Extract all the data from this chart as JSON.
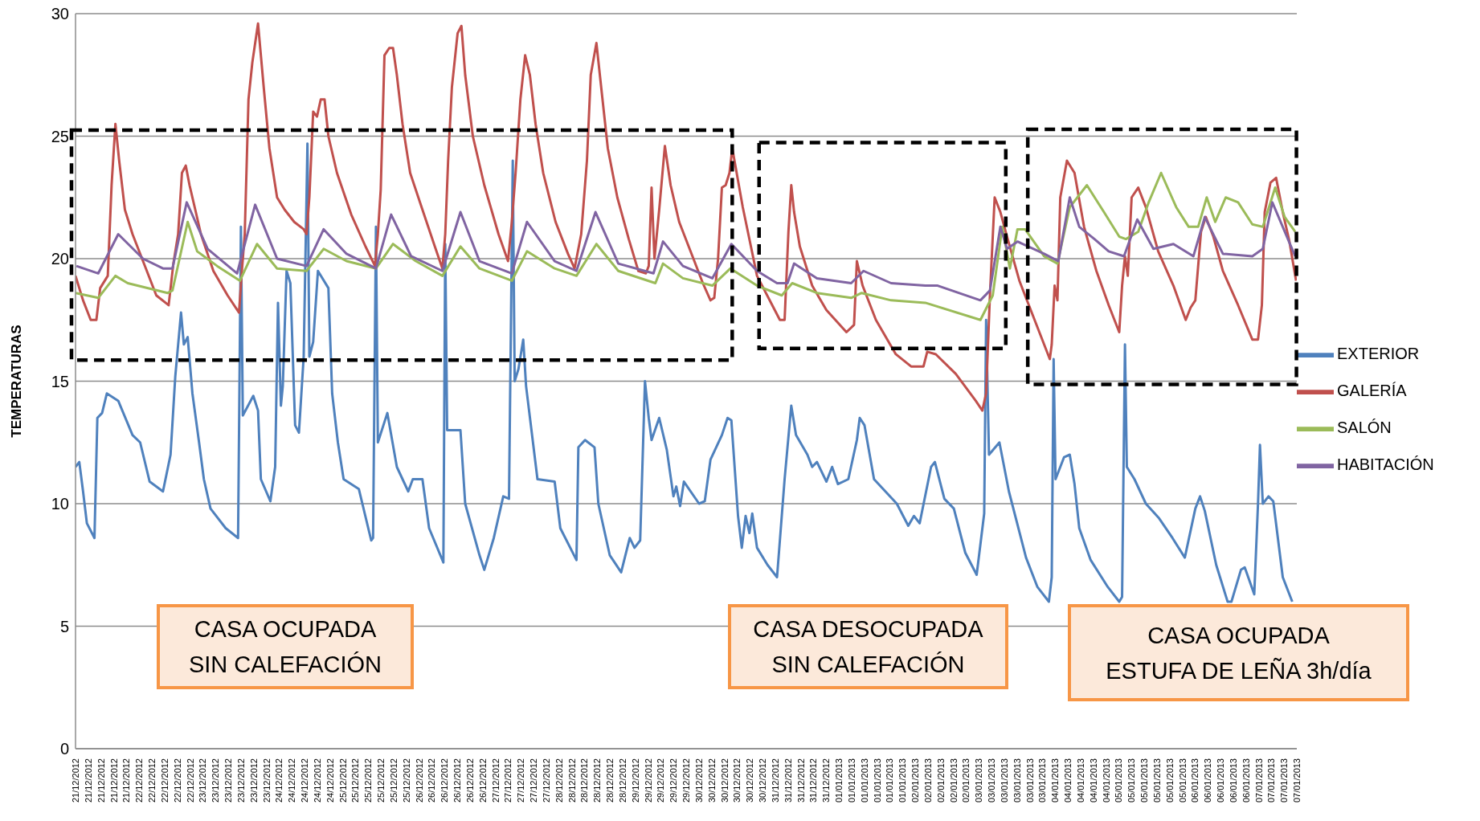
{
  "chart_data": {
    "type": "line",
    "ylabel": "TEMPERATURAS",
    "ylim": [
      0,
      30
    ],
    "yticks": [
      0,
      5,
      10,
      15,
      20,
      25,
      30
    ],
    "grid": "y",
    "legend": "right",
    "xlim": [
      "2012-12-21T05:00",
      "2013-01-07T13:00"
    ],
    "xticks": [
      {
        "value": "2012-12-21T05:00",
        "label": "21/12/2012"
      },
      {
        "value": "2012-12-21T09:20",
        "label": "21/12/2012"
      },
      {
        "value": "2012-12-21T13:40",
        "label": "21/12/2012"
      },
      {
        "value": "2012-12-21T18:00",
        "label": "21/12/2012"
      },
      {
        "value": "2012-12-21T22:20",
        "label": "21/12/2012"
      },
      {
        "value": "2012-12-22T02:40",
        "label": "22/12/2012"
      },
      {
        "value": "2012-12-22T07:00",
        "label": "22/12/2012"
      },
      {
        "value": "2012-12-22T11:20",
        "label": "22/12/2012"
      },
      {
        "value": "2012-12-22T15:40",
        "label": "22/12/2012"
      },
      {
        "value": "2012-12-22T20:00",
        "label": "22/12/2012"
      },
      {
        "value": "2012-12-23T00:20",
        "label": "23/12/2012"
      },
      {
        "value": "2012-12-23T04:40",
        "label": "23/12/2012"
      },
      {
        "value": "2012-12-23T09:00",
        "label": "23/12/2012"
      },
      {
        "value": "2012-12-23T13:20",
        "label": "23/12/2012"
      },
      {
        "value": "2012-12-23T17:40",
        "label": "23/12/2012"
      },
      {
        "value": "2012-12-23T22:00",
        "label": "23/12/2012"
      },
      {
        "value": "2012-12-24T02:20",
        "label": "24/12/2012"
      },
      {
        "value": "2012-12-24T06:40",
        "label": "24/12/2012"
      },
      {
        "value": "2012-12-24T11:00",
        "label": "24/12/2012"
      },
      {
        "value": "2012-12-24T15:20",
        "label": "24/12/2012"
      },
      {
        "value": "2012-12-24T19:40",
        "label": "24/12/2012"
      },
      {
        "value": "2012-12-25T00:00",
        "label": "25/12/2012"
      },
      {
        "value": "2012-12-25T04:20",
        "label": "25/12/2012"
      },
      {
        "value": "2012-12-25T08:40",
        "label": "25/12/2012"
      },
      {
        "value": "2012-12-25T13:00",
        "label": "25/12/2012"
      },
      {
        "value": "2012-12-25T17:20",
        "label": "25/12/2012"
      },
      {
        "value": "2012-12-25T21:40",
        "label": "25/12/2012"
      },
      {
        "value": "2012-12-26T02:00",
        "label": "26/12/2012"
      },
      {
        "value": "2012-12-26T06:20",
        "label": "26/12/2012"
      },
      {
        "value": "2012-12-26T10:40",
        "label": "26/12/2012"
      },
      {
        "value": "2012-12-26T15:00",
        "label": "26/12/2012"
      },
      {
        "value": "2012-12-26T19:20",
        "label": "26/12/2012"
      },
      {
        "value": "2012-12-26T23:40",
        "label": "26/12/2012"
      },
      {
        "value": "2012-12-27T04:00",
        "label": "27/12/2012"
      },
      {
        "value": "2012-12-27T08:20",
        "label": "27/12/2012"
      },
      {
        "value": "2012-12-27T12:40",
        "label": "27/12/2012"
      },
      {
        "value": "2012-12-27T17:00",
        "label": "27/12/2012"
      },
      {
        "value": "2012-12-27T21:20",
        "label": "27/12/2012"
      },
      {
        "value": "2012-12-28T01:40",
        "label": "28/12/2012"
      },
      {
        "value": "2012-12-28T06:00",
        "label": "28/12/2012"
      },
      {
        "value": "2012-12-28T10:20",
        "label": "28/12/2012"
      },
      {
        "value": "2012-12-28T14:40",
        "label": "28/12/2012"
      },
      {
        "value": "2012-12-28T19:00",
        "label": "28/12/2012"
      },
      {
        "value": "2012-12-28T23:20",
        "label": "28/12/2012"
      },
      {
        "value": "2012-12-29T03:40",
        "label": "29/12/2012"
      },
      {
        "value": "2012-12-29T08:00",
        "label": "29/12/2012"
      },
      {
        "value": "2012-12-29T12:20",
        "label": "29/12/2012"
      },
      {
        "value": "2012-12-29T16:40",
        "label": "29/12/2012"
      },
      {
        "value": "2012-12-29T21:00",
        "label": "29/12/2012"
      },
      {
        "value": "2012-12-30T01:20",
        "label": "30/12/2012"
      },
      {
        "value": "2012-12-30T05:40",
        "label": "30/12/2012"
      },
      {
        "value": "2012-12-30T10:00",
        "label": "30/12/2012"
      },
      {
        "value": "2012-12-30T14:20",
        "label": "30/12/2012"
      },
      {
        "value": "2012-12-30T18:40",
        "label": "30/12/2012"
      },
      {
        "value": "2012-12-30T23:00",
        "label": "30/12/2012"
      },
      {
        "value": "2012-12-31T03:20",
        "label": "31/12/2012"
      },
      {
        "value": "2012-12-31T07:40",
        "label": "31/12/2012"
      },
      {
        "value": "2012-12-31T12:00",
        "label": "31/12/2012"
      },
      {
        "value": "2012-12-31T16:20",
        "label": "31/12/2012"
      },
      {
        "value": "2012-12-31T20:40",
        "label": "31/12/2012"
      },
      {
        "value": "2013-01-01T01:00",
        "label": "01/01/2013"
      },
      {
        "value": "2013-01-01T05:20",
        "label": "01/01/2013"
      },
      {
        "value": "2013-01-01T09:40",
        "label": "01/01/2013"
      },
      {
        "value": "2013-01-01T14:00",
        "label": "01/01/2013"
      },
      {
        "value": "2013-01-01T18:20",
        "label": "01/01/2013"
      },
      {
        "value": "2013-01-01T22:40",
        "label": "01/01/2013"
      },
      {
        "value": "2013-01-02T03:00",
        "label": "02/01/2013"
      },
      {
        "value": "2013-01-02T07:20",
        "label": "02/01/2013"
      },
      {
        "value": "2013-01-02T11:40",
        "label": "02/01/2013"
      },
      {
        "value": "2013-01-02T16:00",
        "label": "02/01/2013"
      },
      {
        "value": "2013-01-02T20:20",
        "label": "02/01/2013"
      },
      {
        "value": "2013-01-03T00:40",
        "label": "03/01/2013"
      },
      {
        "value": "2013-01-03T05:00",
        "label": "03/01/2013"
      },
      {
        "value": "2013-01-03T09:20",
        "label": "03/01/2013"
      },
      {
        "value": "2013-01-03T13:40",
        "label": "03/01/2013"
      },
      {
        "value": "2013-01-03T18:00",
        "label": "03/01/2013"
      },
      {
        "value": "2013-01-03T22:20",
        "label": "03/01/2013"
      },
      {
        "value": "2013-01-04T02:40",
        "label": "04/01/2013"
      },
      {
        "value": "2013-01-04T07:00",
        "label": "04/01/2013"
      },
      {
        "value": "2013-01-04T11:20",
        "label": "04/01/2013"
      },
      {
        "value": "2013-01-04T15:40",
        "label": "04/01/2013"
      },
      {
        "value": "2013-01-04T20:00",
        "label": "04/01/2013"
      },
      {
        "value": "2013-01-05T00:20",
        "label": "05/01/2013"
      },
      {
        "value": "2013-01-05T04:40",
        "label": "05/01/2013"
      },
      {
        "value": "2013-01-05T09:00",
        "label": "05/01/2013"
      },
      {
        "value": "2013-01-05T13:20",
        "label": "05/01/2013"
      },
      {
        "value": "2013-01-05T17:40",
        "label": "05/01/2013"
      },
      {
        "value": "2013-01-05T22:00",
        "label": "05/01/2013"
      },
      {
        "value": "2013-01-06T02:20",
        "label": "06/01/2013"
      },
      {
        "value": "2013-01-06T06:40",
        "label": "06/01/2013"
      },
      {
        "value": "2013-01-06T11:00",
        "label": "06/01/2013"
      },
      {
        "value": "2013-01-06T15:20",
        "label": "06/01/2013"
      },
      {
        "value": "2013-01-06T19:40",
        "label": "06/01/2013"
      },
      {
        "value": "2013-01-07T00:00",
        "label": "07/01/2013"
      },
      {
        "value": "2013-01-07T04:20",
        "label": "07/01/2013"
      },
      {
        "value": "2013-01-07T08:40",
        "label": "07/01/2013"
      },
      {
        "value": "2013-01-07T13:00",
        "label": "07/01/2013"
      }
    ],
    "annotations": [
      "CASA OCUPADA\nSIN CALEFACIÓN",
      "CASA DESOCUPADA\nSIN CALEFACIÓN",
      "CASA OCUPADA\nESTUFA DE LEÑA 3h/día"
    ],
    "series": [
      {
        "name": "EXTERIOR",
        "color": "#4f81bd",
        "x": [
          "2012-12-21T05:00",
          "2012-12-21T06:17",
          "2012-12-21T07:34",
          "2012-12-21T08:52",
          "2012-12-21T11:27",
          "2012-12-21T12:26",
          "2012-12-21T14:03",
          "2012-12-21T15:40",
          "2012-12-21T19:33",
          "2012-12-22T00:25",
          "2012-12-22T03:01",
          "2012-12-22T06:15",
          "2012-12-22T10:47",
          "2012-12-22T13:22",
          "2012-12-22T14:59",
          "2012-12-22T16:56",
          "2012-12-22T17:54",
          "2012-12-22T19:12",
          "2012-12-22T20:49",
          "2012-12-22T23:05",
          "2012-12-23T00:43",
          "2012-12-23T02:59",
          "2012-12-23T08:09",
          "2012-12-23T12:22",
          "2012-12-23T13:20",
          "2012-12-23T13:59",
          "2012-12-23T17:33",
          "2012-12-23T19:10",
          "2012-12-23T20:08",
          "2012-12-23T23:22",
          "2012-12-24T01:00",
          "2012-12-24T01:58",
          "2012-12-24T02:57",
          "2012-12-24T03:36",
          "2012-12-24T04:53",
          "2012-12-24T06:11",
          "2012-12-24T07:48",
          "2012-12-24T09:06",
          "2012-12-24T10:43",
          "2012-12-24T12:00",
          "2012-12-24T12:39",
          "2012-12-24T13:57",
          "2012-12-24T15:34",
          "2012-12-24T19:08",
          "2012-12-24T20:25",
          "2012-12-24T22:22",
          "2012-12-25T00:19",
          "2012-12-25T05:30",
          "2012-12-25T09:43",
          "2012-12-25T10:21",
          "2012-12-25T11:20",
          "2012-12-25T11:59",
          "2012-12-25T15:13",
          "2012-12-25T18:27",
          "2012-12-25T22:20",
          "2012-12-25T23:53",
          "2012-12-26T03:10",
          "2012-12-26T05:26",
          "2012-12-26T10:18",
          "2012-12-26T10:56",
          "2012-12-26T11:35",
          "2012-12-26T16:07",
          "2012-12-26T17:44",
          "2012-12-26T22:36",
          "2012-12-27T00:14",
          "2012-12-27T03:28",
          "2012-12-27T06:42",
          "2012-12-27T08:39",
          "2012-12-27T09:56",
          "2012-12-27T10:35",
          "2012-12-27T11:53",
          "2012-12-27T13:30",
          "2012-12-27T14:28",
          "2012-12-27T18:21",
          "2012-12-28T00:12",
          "2012-12-28T02:08",
          "2012-12-28T07:38",
          "2012-12-28T08:17",
          "2012-12-28T10:33",
          "2012-12-28T13:47",
          "2012-12-28T15:05",
          "2012-12-28T18:58",
          "2012-12-28T22:51",
          "2012-12-29T01:47",
          "2012-12-29T03:24",
          "2012-12-29T05:20",
          "2012-12-29T06:58",
          "2012-12-29T08:15",
          "2012-12-29T09:13",
          "2012-12-29T11:49",
          "2012-12-29T14:24",
          "2012-12-29T16:40",
          "2012-12-29T17:38",
          "2012-12-29T18:56",
          "2012-12-29T20:14",
          "2012-12-30T01:24",
          "2012-12-30T03:20",
          "2012-12-30T05:17",
          "2012-12-30T09:10",
          "2012-12-30T11:06",
          "2012-12-30T12:24",
          "2012-12-30T14:40",
          "2012-12-30T15:57",
          "2012-12-30T17:15",
          "2012-12-30T18:33",
          "2012-12-30T19:31",
          "2012-12-30T21:08",
          "2012-12-31T00:43",
          "2012-12-31T03:57",
          "2012-12-31T06:32",
          "2012-12-31T08:48",
          "2012-12-31T10:25",
          "2012-12-31T14:18",
          "2012-12-31T15:55",
          "2012-12-31T17:33",
          "2012-12-31T20:47",
          "2012-12-31T22:43",
          "2013-01-01T00:41",
          "2013-01-01T04:14",
          "2013-01-01T07:09",
          "2013-01-01T08:07",
          "2013-01-01T09:45",
          "2013-01-01T12:59",
          "2013-01-01T20:45",
          "2013-01-02T00:39",
          "2013-01-02T02:35",
          "2013-01-02T04:32",
          "2013-01-02T08:25",
          "2013-01-02T09:43",
          "2013-01-02T12:57",
          "2013-01-02T16:11",
          "2013-01-02T20:04",
          "2013-01-02T23:57",
          "2013-01-03T02:31",
          "2013-01-03T03:10",
          "2013-01-03T04:09",
          "2013-01-03T07:42",
          "2013-01-03T10:56",
          "2013-01-03T16:46",
          "2013-01-03T20:39",
          "2013-01-04T00:33",
          "2013-01-04T01:31",
          "2013-01-04T02:10",
          "2013-01-04T02:49",
          "2013-01-04T05:44",
          "2013-01-04T07:40",
          "2013-01-04T09:17",
          "2013-01-04T10:54",
          "2013-01-04T14:47",
          "2013-01-04T20:37",
          "2013-01-05T00:31",
          "2013-01-05T01:29",
          "2013-01-05T02:28",
          "2013-01-05T03:06",
          "2013-01-05T05:42",
          "2013-01-05T09:35",
          "2013-01-05T14:07",
          "2013-01-05T18:39",
          "2013-01-05T22:51",
          "2013-01-06T02:26",
          "2013-01-06T04:03",
          "2013-01-06T05:40",
          "2013-01-06T09:33",
          "2013-01-06T13:26",
          "2013-01-06T14:44",
          "2013-01-06T17:58",
          "2013-01-06T19:16",
          "2013-01-06T22:30",
          "2013-01-06T23:47",
          "2013-01-07T00:27",
          "2013-01-07T01:25",
          "2013-01-07T03:22",
          "2013-01-07T04:59",
          "2013-01-07T08:13",
          "2013-01-07T11:27"
        ],
        "values": [
          11.5,
          11.7,
          10.5,
          9.2,
          8.6,
          13.5,
          13.7,
          14.5,
          14.2,
          12.8,
          12.5,
          10.9,
          10.5,
          12.0,
          15.2,
          17.8,
          16.5,
          16.8,
          14.5,
          12.5,
          11.0,
          9.8,
          9.0,
          8.6,
          21.3,
          13.6,
          14.4,
          13.8,
          11.0,
          10.1,
          11.5,
          18.2,
          14.0,
          14.8,
          19.5,
          19.0,
          13.2,
          12.9,
          16.0,
          24.7,
          16.0,
          16.6,
          19.5,
          18.8,
          14.5,
          12.5,
          11.0,
          10.6,
          8.5,
          8.6,
          21.3,
          12.5,
          13.7,
          11.5,
          10.5,
          11.0,
          11.0,
          9.0,
          7.6,
          20.6,
          13.0,
          13.0,
          10.0,
          7.9,
          7.3,
          8.6,
          10.3,
          10.2,
          24.0,
          15.0,
          15.5,
          16.7,
          14.8,
          11.0,
          10.9,
          9.0,
          7.7,
          12.3,
          12.6,
          12.3,
          10.0,
          7.9,
          7.2,
          8.6,
          8.2,
          8.5,
          15.0,
          13.5,
          12.6,
          13.5,
          12.2,
          10.3,
          10.7,
          9.9,
          10.9,
          10.0,
          10.1,
          11.8,
          12.8,
          13.5,
          13.4,
          9.5,
          8.2,
          9.5,
          8.8,
          9.6,
          8.2,
          7.5,
          7.0,
          11.0,
          14.0,
          12.8,
          12.0,
          11.5,
          11.7,
          10.9,
          11.5,
          10.8,
          11.0,
          12.6,
          13.5,
          13.2,
          11.0,
          10.0,
          9.1,
          9.5,
          9.2,
          11.5,
          11.7,
          10.2,
          9.8,
          8.0,
          7.1,
          9.6,
          17.5,
          12.0,
          12.5,
          10.5,
          7.8,
          6.6,
          6.0,
          7.0,
          15.9,
          11.0,
          11.9,
          12.0,
          10.8,
          9.0,
          7.7,
          6.6,
          6.0,
          6.2,
          16.5,
          11.5,
          11.0,
          10.0,
          9.4,
          8.6,
          7.8,
          9.8,
          10.3,
          9.7,
          7.5,
          6.0,
          6.0,
          7.3,
          7.4,
          6.3,
          10.0,
          12.4,
          10.0,
          10.3,
          10.1,
          7.0,
          6.0
        ]
      },
      {
        "name": "GALERÍA",
        "color": "#c0504d",
        "x": [
          "2012-12-21T05:00",
          "2012-12-21T07:34",
          "2012-12-21T10:10",
          "2012-12-21T12:06",
          "2012-12-21T13:24",
          "2012-12-21T15:59",
          "2012-12-21T17:17",
          "2012-12-21T18:35",
          "2012-12-21T19:52",
          "2012-12-21T21:49",
          "2012-12-22T00:25",
          "2012-12-22T05:17",
          "2012-12-22T08:31",
          "2012-12-22T12:43",
          "2012-12-22T14:20",
          "2012-12-22T15:57",
          "2012-12-22T17:15",
          "2012-12-22T18:33",
          "2012-12-22T19:50",
          "2012-12-22T21:47",
          "2012-12-22T23:43",
          "2012-12-23T03:57",
          "2012-12-23T08:48",
          "2012-12-23T12:41",
          "2012-12-23T13:40",
          "2012-12-23T14:38",
          "2012-12-23T15:55",
          "2012-12-23T17:13",
          "2012-12-23T19:10",
          "2012-12-23T21:06",
          "2012-12-23T23:03",
          "2012-12-24T01:39",
          "2012-12-24T04:14",
          "2012-12-24T07:29",
          "2012-12-24T10:43",
          "2012-12-24T11:41",
          "2012-12-24T12:39",
          "2012-12-24T13:57",
          "2012-12-24T15:15",
          "2012-12-24T16:32",
          "2012-12-24T17:50",
          "2012-12-24T19:08",
          "2012-12-24T22:03",
          "2012-12-25T02:55",
          "2012-12-25T07:46",
          "2012-12-25T11:00",
          "2012-12-25T11:59",
          "2012-12-25T12:57",
          "2012-12-25T14:14",
          "2012-12-25T15:52",
          "2012-12-25T17:09",
          "2012-12-25T18:27",
          "2012-12-25T20:23",
          "2012-12-25T22:59",
          "2012-12-26T03:10",
          "2012-12-26T07:23",
          "2012-12-26T09:58",
          "2012-12-26T10:56",
          "2012-12-26T11:55",
          "2012-12-26T13:12",
          "2012-12-26T15:09",
          "2012-12-26T16:27",
          "2012-12-26T17:44",
          "2012-12-26T20:20",
          "2012-12-27T00:14",
          "2012-12-27T05:05",
          "2012-12-27T08:19",
          "2012-12-27T09:37",
          "2012-12-27T10:54",
          "2012-12-27T12:32",
          "2012-12-27T14:09",
          "2012-12-27T15:46",
          "2012-12-27T17:42",
          "2012-12-27T20:18",
          "2012-12-28T00:31",
          "2012-12-28T04:44",
          "2012-12-28T06:59",
          "2012-12-28T09:15",
          "2012-12-28T11:12",
          "2012-12-28T12:30",
          "2012-12-28T14:26",
          "2012-12-28T16:03",
          "2012-12-28T18:19",
          "2012-12-28T21:33",
          "2012-12-29T01:27",
          "2012-12-29T04:42",
          "2012-12-29T07:17",
          "2012-12-29T08:15",
          "2012-12-29T09:13",
          "2012-12-29T10:12",
          "2012-12-29T11:49",
          "2012-12-29T13:45",
          "2012-12-29T15:42",
          "2012-12-29T18:37",
          "2012-12-29T23:28",
          "2012-12-30T02:41",
          "2012-12-30T05:17",
          "2012-12-30T06:34",
          "2012-12-30T07:52",
          "2012-12-30T09:10",
          "2012-12-30T10:27",
          "2012-12-30T11:45",
          "2012-12-30T12:43",
          "2012-12-30T16:17",
          "2012-12-30T21:08",
          "2012-12-31T02:20",
          "2012-12-31T04:55",
          "2012-12-31T06:32",
          "2012-12-31T07:50",
          "2012-12-31T08:48",
          "2012-12-31T09:46",
          "2012-12-31T11:43",
          "2012-12-31T15:55",
          "2012-12-31T20:47",
          "2013-01-01T03:36",
          "2013-01-01T06:11",
          "2013-01-01T07:09",
          "2013-01-01T09:06",
          "2013-01-01T13:38",
          "2013-01-01T20:25",
          "2013-01-02T01:37",
          "2013-01-02T05:50",
          "2013-01-02T07:07",
          "2013-01-02T10:02",
          "2013-01-02T16:50",
          "2013-01-02T23:38",
          "2013-01-03T01:53",
          "2013-01-03T03:10",
          "2013-01-03T04:28",
          "2013-01-03T06:05",
          "2013-01-03T08:02",
          "2013-01-03T10:18",
          "2013-01-03T14:30",
          "2013-01-03T19:41",
          "2013-01-04T00:52",
          "2013-01-04T01:31",
          "2013-01-04T02:30",
          "2013-01-04T03:28",
          "2013-01-04T04:26",
          "2013-01-04T06:42",
          "2013-01-04T09:17",
          "2013-01-04T12:32",
          "2013-01-04T16:44",
          "2013-01-04T20:56",
          "2013-01-05T00:31",
          "2013-01-05T01:29",
          "2013-01-05T02:28",
          "2013-01-05T03:26",
          "2013-01-05T04:44",
          "2013-01-05T06:59",
          "2013-01-05T09:35",
          "2013-01-05T13:47",
          "2013-01-05T18:58",
          "2013-01-05T23:10",
          "2013-01-06T00:49",
          "2013-01-06T02:26",
          "2013-01-06T04:22",
          "2013-01-06T05:59",
          "2013-01-06T08:35",
          "2013-01-06T11:49",
          "2013-01-06T17:00",
          "2013-01-06T21:51",
          "2013-01-06T23:47",
          "2013-01-07T01:06",
          "2013-01-07T02:04",
          "2013-01-07T04:01",
          "2013-01-07T05:57",
          "2013-01-07T08:13",
          "2013-01-07T10:29",
          "2013-01-07T12:45"
        ],
        "values": [
          19.3,
          18.3,
          17.5,
          17.5,
          18.8,
          19.3,
          23.0,
          25.5,
          24.0,
          22.0,
          21.0,
          19.5,
          18.5,
          18.1,
          19.8,
          21.0,
          23.5,
          23.8,
          23.0,
          22.0,
          21.0,
          19.5,
          18.5,
          17.8,
          19.5,
          21.0,
          26.5,
          28.0,
          29.6,
          27.0,
          24.5,
          22.5,
          22.0,
          21.5,
          21.2,
          21.0,
          22.5,
          26.0,
          25.8,
          26.5,
          26.5,
          25.0,
          23.5,
          21.8,
          20.5,
          19.7,
          21.0,
          22.8,
          28.3,
          28.6,
          28.6,
          27.5,
          25.5,
          23.5,
          22.0,
          20.5,
          19.6,
          21.0,
          24.0,
          27.0,
          29.2,
          29.5,
          27.5,
          25.0,
          23.0,
          21.0,
          19.9,
          21.5,
          23.5,
          26.5,
          28.3,
          27.5,
          25.5,
          23.5,
          21.5,
          20.2,
          19.6,
          21.0,
          24.0,
          27.5,
          28.8,
          27.0,
          24.5,
          22.5,
          20.8,
          19.5,
          19.4,
          19.7,
          22.9,
          20.0,
          22.0,
          24.6,
          23.0,
          21.5,
          20.0,
          19.0,
          18.3,
          18.4,
          20.0,
          22.9,
          23.0,
          23.5,
          24.5,
          22.1,
          19.3,
          18.1,
          17.5,
          17.5,
          21.1,
          23.0,
          21.9,
          20.5,
          18.9,
          17.9,
          17.0,
          17.3,
          19.9,
          18.9,
          17.5,
          16.1,
          15.6,
          15.6,
          16.2,
          16.1,
          15.3,
          14.2,
          13.8,
          14.5,
          18.5,
          22.5,
          21.9,
          20.9,
          19.1,
          17.5,
          15.9,
          16.5,
          18.9,
          18.3,
          22.5,
          24.0,
          23.5,
          21.3,
          19.5,
          18.1,
          17.0,
          18.9,
          20.1,
          19.3,
          22.5,
          22.9,
          22.1,
          20.3,
          18.9,
          17.5,
          18.0,
          18.3,
          21.1,
          21.7,
          20.9,
          19.5,
          18.1,
          16.7,
          16.7,
          18.1,
          21.9,
          23.1,
          23.3,
          21.9,
          20.7,
          19.1
        ]
      },
      {
        "name": "SALÓN",
        "color": "#9bbb59",
        "x": [
          "2012-12-21T05:00",
          "2012-12-21T12:45",
          "2012-12-21T18:35",
          "2012-12-21T22:47",
          "2012-12-22T12:24",
          "2012-12-22T14:01",
          "2012-12-22T19:12",
          "2012-12-22T22:26",
          "2012-12-23T05:15",
          "2012-12-23T13:01",
          "2012-12-23T18:50",
          "2012-12-24T01:39",
          "2012-12-24T11:41",
          "2012-12-24T17:31",
          "2012-12-25T01:18",
          "2012-12-25T11:20",
          "2012-12-25T17:09",
          "2012-12-26T00:54",
          "2012-12-26T09:58",
          "2012-12-26T16:07",
          "2012-12-26T22:36",
          "2012-12-27T09:37",
          "2012-12-27T14:47",
          "2012-12-28T00:12",
          "2012-12-28T07:38",
          "2012-12-28T14:26",
          "2012-12-28T21:53",
          "2012-12-29T10:31",
          "2012-12-29T13:07",
          "2012-12-29T19:54",
          "2012-12-30T05:55",
          "2012-12-30T12:04",
          "2012-12-30T21:08",
          "2012-12-31T05:34",
          "2012-12-31T09:08",
          "2012-12-31T17:33",
          "2013-01-01T05:13",
          "2013-01-01T08:46",
          "2013-01-01T18:48",
          "2013-01-02T06:28",
          "2013-01-03T01:14",
          "2013-01-03T05:26",
          "2013-01-03T08:40",
          "2013-01-03T11:16",
          "2013-01-03T13:51",
          "2013-01-03T16:27",
          "2013-01-03T22:55",
          "2013-01-04T03:28",
          "2013-01-04T07:40",
          "2013-01-04T13:30",
          "2013-01-04T19:19",
          "2013-01-05T00:31",
          "2013-01-05T02:47",
          "2013-01-05T06:59",
          "2013-01-05T10:33",
          "2013-01-05T14:46",
          "2013-01-05T19:56",
          "2013-01-06T00:10",
          "2013-01-06T03:24",
          "2013-01-06T06:19",
          "2013-01-06T09:13",
          "2013-01-06T12:47",
          "2013-01-06T17:00",
          "2013-01-06T21:51",
          "2013-01-07T01:25",
          "2013-01-07T05:38",
          "2013-01-07T08:52",
          "2013-01-07T12:26"
        ],
        "values": [
          18.6,
          18.4,
          19.3,
          19.0,
          18.6,
          18.7,
          21.5,
          20.3,
          19.7,
          19.1,
          20.6,
          19.6,
          19.5,
          20.4,
          19.9,
          19.6,
          20.6,
          19.9,
          19.3,
          20.5,
          19.6,
          19.1,
          20.3,
          19.6,
          19.3,
          20.6,
          19.5,
          19.0,
          19.8,
          19.2,
          18.9,
          19.6,
          18.9,
          18.5,
          19.0,
          18.6,
          18.4,
          18.6,
          18.3,
          18.2,
          17.5,
          18.5,
          21.3,
          19.6,
          21.2,
          21.2,
          20.1,
          19.8,
          22.1,
          23.0,
          21.9,
          20.9,
          20.8,
          21.1,
          22.3,
          23.5,
          22.1,
          21.3,
          21.3,
          22.5,
          21.5,
          22.5,
          22.3,
          21.4,
          21.3,
          22.9,
          21.7,
          21.1
        ]
      },
      {
        "name": "HABITACIÓN",
        "color": "#8064a2",
        "x": [
          "2012-12-21T05:18",
          "2012-12-21T12:45",
          "2012-12-21T19:33",
          "2012-12-22T03:59",
          "2012-12-22T10:47",
          "2012-12-22T14:01",
          "2012-12-22T18:52",
          "2012-12-23T02:00",
          "2012-12-23T12:02",
          "2012-12-23T18:11",
          "2012-12-24T01:39",
          "2012-12-24T11:41",
          "2012-12-24T17:31",
          "2012-12-25T01:18",
          "2012-12-25T11:20",
          "2012-12-25T16:30",
          "2012-12-25T23:18",
          "2012-12-26T09:58",
          "2012-12-26T16:07",
          "2012-12-26T22:36",
          "2012-12-27T09:37",
          "2012-12-27T14:47",
          "2012-12-28T00:12",
          "2012-12-28T07:38",
          "2012-12-28T14:07",
          "2012-12-28T21:53",
          "2012-12-29T09:52",
          "2012-12-29T13:07",
          "2012-12-29T19:54",
          "2012-12-30T05:55",
          "2012-12-30T12:24",
          "2012-12-30T21:08",
          "2012-12-31T03:57",
          "2012-12-31T07:31",
          "2012-12-31T09:46",
          "2012-12-31T17:33",
          "2013-01-01T05:13",
          "2013-01-01T09:25",
          "2013-01-01T18:48",
          "2013-01-02T06:28",
          "2013-01-02T10:41",
          "2013-01-03T01:14",
          "2013-01-03T04:28",
          "2013-01-03T08:02",
          "2013-01-03T10:18",
          "2013-01-03T13:51",
          "2013-01-03T22:55",
          "2013-01-04T03:47",
          "2013-01-04T07:40",
          "2013-01-04T10:54",
          "2013-01-04T16:05",
          "2013-01-04T20:56",
          "2013-01-05T02:08",
          "2013-01-05T06:40",
          "2013-01-05T12:10",
          "2013-01-05T18:58",
          "2013-01-06T01:47",
          "2013-01-06T05:40",
          "2013-01-06T11:49",
          "2013-01-06T21:51",
          "2013-01-07T01:25",
          "2013-01-07T04:40",
          "2013-01-07T12:26"
        ],
        "values": [
          19.7,
          19.4,
          21.0,
          20.0,
          19.6,
          19.6,
          22.3,
          20.4,
          19.4,
          22.2,
          20.0,
          19.7,
          21.2,
          20.2,
          19.6,
          21.8,
          20.1,
          19.5,
          21.9,
          19.9,
          19.4,
          21.5,
          19.9,
          19.5,
          21.9,
          19.8,
          19.4,
          20.7,
          19.7,
          19.2,
          20.6,
          19.5,
          19.0,
          19.0,
          19.8,
          19.2,
          19.0,
          19.5,
          19.0,
          18.9,
          18.9,
          18.3,
          18.7,
          21.3,
          20.4,
          20.7,
          20.2,
          19.9,
          22.5,
          21.3,
          20.8,
          20.3,
          20.1,
          21.6,
          20.4,
          20.6,
          20.1,
          21.7,
          20.2,
          20.1,
          20.4,
          22.3,
          20.1
        ]
      }
    ]
  }
}
